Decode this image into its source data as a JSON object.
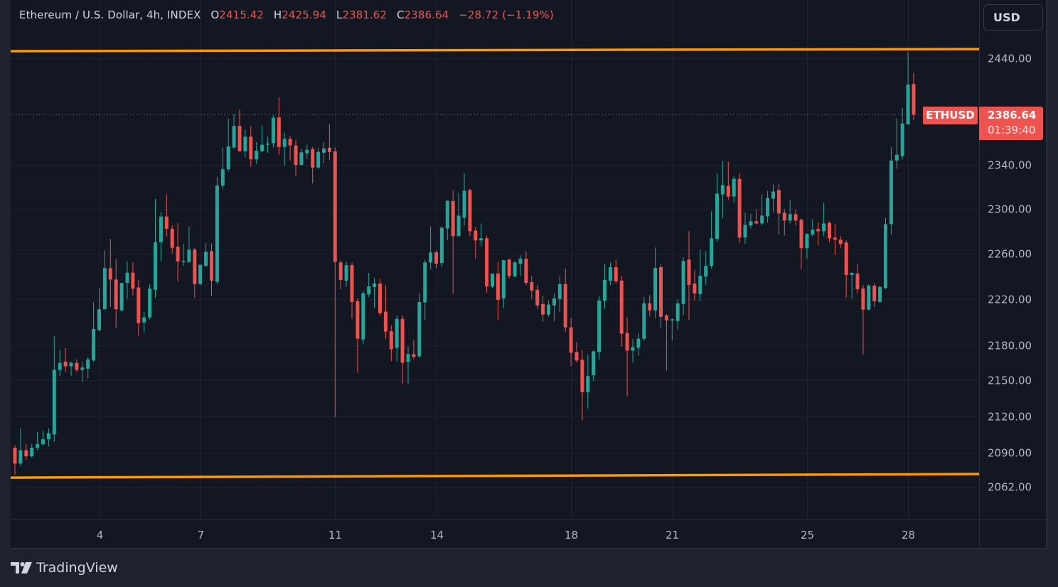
{
  "header": {
    "symbol_desc": "Ethereum / U.S. Dollar, 4h, INDEX",
    "open_label": "O",
    "open": "2415.42",
    "high_label": "H",
    "high": "2425.94",
    "low_label": "L",
    "low": "2381.62",
    "close_label": "C",
    "close": "2386.64",
    "change": "−28.72 (−1.19%)"
  },
  "currency_button": "USD",
  "price_tag": {
    "symbol": "ETHUSD",
    "price": "2386.64",
    "countdown": "01:39:40"
  },
  "branding": {
    "name": "TradingView"
  },
  "colors": {
    "up": "#26a69a",
    "down": "#ef5350",
    "trendline": "#ff9800",
    "background": "#131722",
    "grid": "#1f2330"
  },
  "chart_data": {
    "type": "candlestick",
    "symbol": "ETHUSD",
    "interval": "4h",
    "y_scale": "log",
    "grid": true,
    "ylim": [
      2040,
      2460
    ],
    "y_ticks": [
      "2440.00",
      "2340.00",
      "2300.00",
      "2260.00",
      "2220.00",
      "2180.00",
      "2150.00",
      "2120.00",
      "2090.00",
      "2062.00"
    ],
    "x_ticks": [
      "4",
      "7",
      "11",
      "14",
      "18",
      "21",
      "25",
      "28"
    ],
    "last_price": 2386.64,
    "trendlines": [
      {
        "start": 2446.8,
        "end": 2448.9
      },
      {
        "start": 2069.6,
        "end": 2072.5
      }
    ],
    "candles_ohlc": [
      [
        2094,
        2096,
        2072,
        2081
      ],
      [
        2081,
        2110,
        2079,
        2092
      ],
      [
        2092,
        2097,
        2084,
        2087
      ],
      [
        2087,
        2097,
        2086,
        2094
      ],
      [
        2094,
        2107,
        2092,
        2097
      ],
      [
        2097,
        2108,
        2096,
        2101
      ],
      [
        2101,
        2110,
        2095,
        2106
      ],
      [
        2105,
        2188,
        2099,
        2159
      ],
      [
        2159,
        2176,
        2154,
        2165
      ],
      [
        2166,
        2178,
        2157,
        2162
      ],
      [
        2162,
        2166,
        2154,
        2165
      ],
      [
        2165,
        2168,
        2157,
        2159
      ],
      [
        2159,
        2166,
        2149,
        2161
      ],
      [
        2160,
        2170,
        2152,
        2168
      ],
      [
        2167,
        2217,
        2166,
        2194
      ],
      [
        2193,
        2229,
        2192,
        2211
      ],
      [
        2211,
        2263,
        2211,
        2247
      ],
      [
        2247,
        2273,
        2213,
        2237
      ],
      [
        2237,
        2255,
        2195,
        2211
      ],
      [
        2210,
        2234,
        2209,
        2234
      ],
      [
        2234,
        2253,
        2220,
        2243
      ],
      [
        2243,
        2252,
        2223,
        2229
      ],
      [
        2230,
        2237,
        2188,
        2199
      ],
      [
        2199.6,
        2209,
        2191,
        2204
      ],
      [
        2204,
        2233,
        2202,
        2229
      ],
      [
        2228,
        2309,
        2221,
        2270
      ],
      [
        2270,
        2297,
        2253,
        2293
      ],
      [
        2293,
        2313,
        2275,
        2282
      ],
      [
        2282,
        2285,
        2260,
        2265
      ],
      [
        2266,
        2287,
        2235,
        2253
      ],
      [
        2253,
        2268.5,
        2249,
        2253.5
      ],
      [
        2252.5,
        2284,
        2251.5,
        2263.5
      ],
      [
        2263.5,
        2265,
        2221,
        2233
      ],
      [
        2233,
        2250,
        2232,
        2250
      ],
      [
        2249,
        2269,
        2248,
        2261.5
      ],
      [
        2262,
        2269,
        2223,
        2236
      ],
      [
        2235,
        2329,
        2233,
        2321
      ],
      [
        2321,
        2356,
        2318,
        2336
      ],
      [
        2336,
        2383,
        2334,
        2357
      ],
      [
        2356,
        2387,
        2354.5,
        2376
      ],
      [
        2376,
        2391.5,
        2352.5,
        2352.5
      ],
      [
        2352.5,
        2373,
        2347,
        2366
      ],
      [
        2366,
        2376,
        2338,
        2345
      ],
      [
        2345,
        2361,
        2341,
        2353
      ],
      [
        2352.5,
        2376,
        2352,
        2358.5
      ],
      [
        2359,
        2366,
        2351,
        2359.5
      ],
      [
        2360,
        2386,
        2356,
        2383.6
      ],
      [
        2384,
        2403,
        2349,
        2356.5
      ],
      [
        2356.5,
        2370,
        2339,
        2364
      ],
      [
        2364,
        2367,
        2344,
        2358
      ],
      [
        2358,
        2363,
        2330,
        2340
      ],
      [
        2340,
        2355,
        2339.5,
        2351.5
      ],
      [
        2350.6,
        2358.5,
        2345.4,
        2353.9
      ],
      [
        2354.5,
        2356.5,
        2323,
        2337.6
      ],
      [
        2337.6,
        2355.8,
        2336.3,
        2351.9
      ],
      [
        2351.2,
        2361,
        2341.5,
        2355.1
      ],
      [
        2355.8,
        2377.6,
        2344.7,
        2351.9
      ],
      [
        2352.5,
        2356,
        2119.5,
        2252.7
      ],
      [
        2252,
        2254,
        2228.5,
        2236.6
      ],
      [
        2236,
        2252.7,
        2231,
        2249.6
      ],
      [
        2249.6,
        2252,
        2202.7,
        2217.4
      ],
      [
        2218,
        2221,
        2157,
        2185.6
      ],
      [
        2185,
        2227,
        2181,
        2225
      ],
      [
        2224,
        2242.8,
        2221.7,
        2231
      ],
      [
        2230.4,
        2238.4,
        2212,
        2233.5
      ],
      [
        2233.5,
        2238,
        2206,
        2207.6
      ],
      [
        2209,
        2232,
        2185.6,
        2191.7
      ],
      [
        2192,
        2197,
        2166.4,
        2176.6
      ],
      [
        2177.8,
        2205.7,
        2165.8,
        2202.7
      ],
      [
        2202.7,
        2205.7,
        2147,
        2165
      ],
      [
        2165.8,
        2179,
        2146.6,
        2172.4
      ],
      [
        2172.4,
        2184.4,
        2168.2,
        2170
      ],
      [
        2170.6,
        2224.8,
        2169.4,
        2217.4
      ],
      [
        2217,
        2254.6,
        2201.5,
        2252
      ],
      [
        2252,
        2284.3,
        2245.9,
        2260.9
      ],
      [
        2261,
        2262.8,
        2247,
        2251
      ],
      [
        2251.5,
        2283.6,
        2248,
        2283
      ],
      [
        2282.3,
        2307.3,
        2272,
        2307.3
      ],
      [
        2307,
        2317,
        2224.2,
        2275.4
      ],
      [
        2275.4,
        2314.3,
        2275.4,
        2293.8
      ],
      [
        2291.9,
        2332.4,
        2284.9,
        2316.3
      ],
      [
        2317,
        2318,
        2275.4,
        2279.8
      ],
      [
        2280.4,
        2283.6,
        2255.3,
        2271.6
      ],
      [
        2271.6,
        2286.8,
        2266.6,
        2273.5
      ],
      [
        2273.5,
        2276,
        2225.4,
        2231
      ],
      [
        2231,
        2242.2,
        2229.7,
        2242.2
      ],
      [
        2242.2,
        2252.7,
        2201.5,
        2219.3
      ],
      [
        2220.5,
        2254,
        2212,
        2254
      ],
      [
        2254.6,
        2255.3,
        2237.8,
        2240.3
      ],
      [
        2239.7,
        2253.3,
        2239,
        2252.1
      ],
      [
        2250.8,
        2258.4,
        2240.3,
        2255.3
      ],
      [
        2255.3,
        2262.2,
        2232,
        2234.1
      ],
      [
        2234.7,
        2240.3,
        2220,
        2227.3
      ],
      [
        2228,
        2232.3,
        2211.3,
        2214.4
      ],
      [
        2215.6,
        2222.3,
        2200.3,
        2206.4
      ],
      [
        2206.4,
        2218.6,
        2204.5,
        2215
      ],
      [
        2214.4,
        2224.8,
        2200.3,
        2220.5
      ],
      [
        2220,
        2239.7,
        2208.8,
        2232.9
      ],
      [
        2233,
        2246.5,
        2191,
        2195.4
      ],
      [
        2195.4,
        2203.3,
        2162.2,
        2173.6
      ],
      [
        2174.2,
        2182.6,
        2165.2,
        2167
      ],
      [
        2167.6,
        2176,
        2116.6,
        2140.1
      ],
      [
        2140.1,
        2171.8,
        2126.6,
        2153.8
      ],
      [
        2154.4,
        2175.4,
        2149.6,
        2174.8
      ],
      [
        2174.2,
        2222.3,
        2167.6,
        2218.6
      ],
      [
        2218.6,
        2250.8,
        2211.3,
        2236.6
      ],
      [
        2236,
        2252.1,
        2232,
        2247.8
      ],
      [
        2247.8,
        2254.6,
        2233.5,
        2235.4
      ],
      [
        2236,
        2240.3,
        2179,
        2189.9
      ],
      [
        2190.5,
        2204,
        2136.6,
        2175.4
      ],
      [
        2175.4,
        2185.6,
        2165.2,
        2178.4
      ],
      [
        2177.8,
        2190.5,
        2171.2,
        2185.6
      ],
      [
        2185.6,
        2221.7,
        2183.8,
        2216.2
      ],
      [
        2216.2,
        2223.5,
        2205.1,
        2210
      ],
      [
        2210,
        2265.3,
        2203.3,
        2247.1
      ],
      [
        2247.8,
        2250.2,
        2194.8,
        2204.5
      ],
      [
        2205.7,
        2206.9,
        2158.6,
        2201.5
      ],
      [
        2202,
        2203,
        2184.4,
        2202.3
      ],
      [
        2200.9,
        2219.9,
        2193.5,
        2216.2
      ],
      [
        2215.6,
        2256.5,
        2205.7,
        2253.3
      ],
      [
        2254.6,
        2279.8,
        2201.5,
        2232.3
      ],
      [
        2233.5,
        2245.3,
        2218.6,
        2224.8
      ],
      [
        2224.2,
        2263.5,
        2218,
        2240.3
      ],
      [
        2239.7,
        2262.2,
        2232.3,
        2249
      ],
      [
        2249,
        2297.7,
        2246.5,
        2273.5
      ],
      [
        2272.9,
        2332.4,
        2270.4,
        2313.7
      ],
      [
        2313,
        2343.4,
        2291.3,
        2321.4
      ],
      [
        2320.7,
        2342.8,
        2307.9,
        2311.1
      ],
      [
        2311.1,
        2329.8,
        2305.4,
        2327.2
      ],
      [
        2327.2,
        2332.4,
        2269.1,
        2274.1
      ],
      [
        2274.1,
        2296.4,
        2268.5,
        2285.5
      ],
      [
        2284.9,
        2295.1,
        2282.3,
        2288.7
      ],
      [
        2288.7,
        2299.2,
        2286.2,
        2286.8
      ],
      [
        2286.8,
        2313,
        2284.9,
        2293.8
      ],
      [
        2293.2,
        2316.2,
        2287.4,
        2309.8
      ],
      [
        2309.2,
        2322,
        2296.4,
        2315.6
      ],
      [
        2316.9,
        2322.7,
        2276.7,
        2295.8
      ],
      [
        2296.4,
        2299.6,
        2276,
        2289.4
      ],
      [
        2289.4,
        2308,
        2286.8,
        2295.1
      ],
      [
        2295.1,
        2299,
        2284.9,
        2289.4
      ],
      [
        2290,
        2291.3,
        2246.5,
        2264.7
      ],
      [
        2264.7,
        2278,
        2255.3,
        2277.3
      ],
      [
        2276.7,
        2290.6,
        2275.4,
        2281.1
      ],
      [
        2281.7,
        2287.4,
        2267.2,
        2279.8
      ],
      [
        2279.8,
        2305.4,
        2275.4,
        2286.8
      ],
      [
        2287.4,
        2288.7,
        2270.4,
        2273.5
      ],
      [
        2274.1,
        2286.2,
        2258.4,
        2272.3
      ],
      [
        2272.3,
        2275.4,
        2264.7,
        2268.5
      ],
      [
        2269.7,
        2271.6,
        2221.1,
        2241
      ],
      [
        2241,
        2243.4,
        2220.5,
        2242.8
      ],
      [
        2242.2,
        2250.2,
        2224.8,
        2228.5
      ],
      [
        2229.1,
        2232.3,
        2172.4,
        2210.7
      ],
      [
        2210.7,
        2232.9,
        2210,
        2231.6
      ],
      [
        2231.6,
        2233.5,
        2213.1,
        2218
      ],
      [
        2217.4,
        2231.6,
        2216.8,
        2230.4
      ],
      [
        2229.7,
        2291.9,
        2228.5,
        2286.2
      ],
      [
        2286.2,
        2356.5,
        2276.7,
        2344
      ],
      [
        2344,
        2383,
        2336.3,
        2349.3
      ],
      [
        2348,
        2393,
        2344.7,
        2378.3
      ],
      [
        2377.6,
        2446.2,
        2377,
        2414.9
      ],
      [
        2415.42,
        2425.94,
        2381.62,
        2386.64
      ]
    ]
  }
}
